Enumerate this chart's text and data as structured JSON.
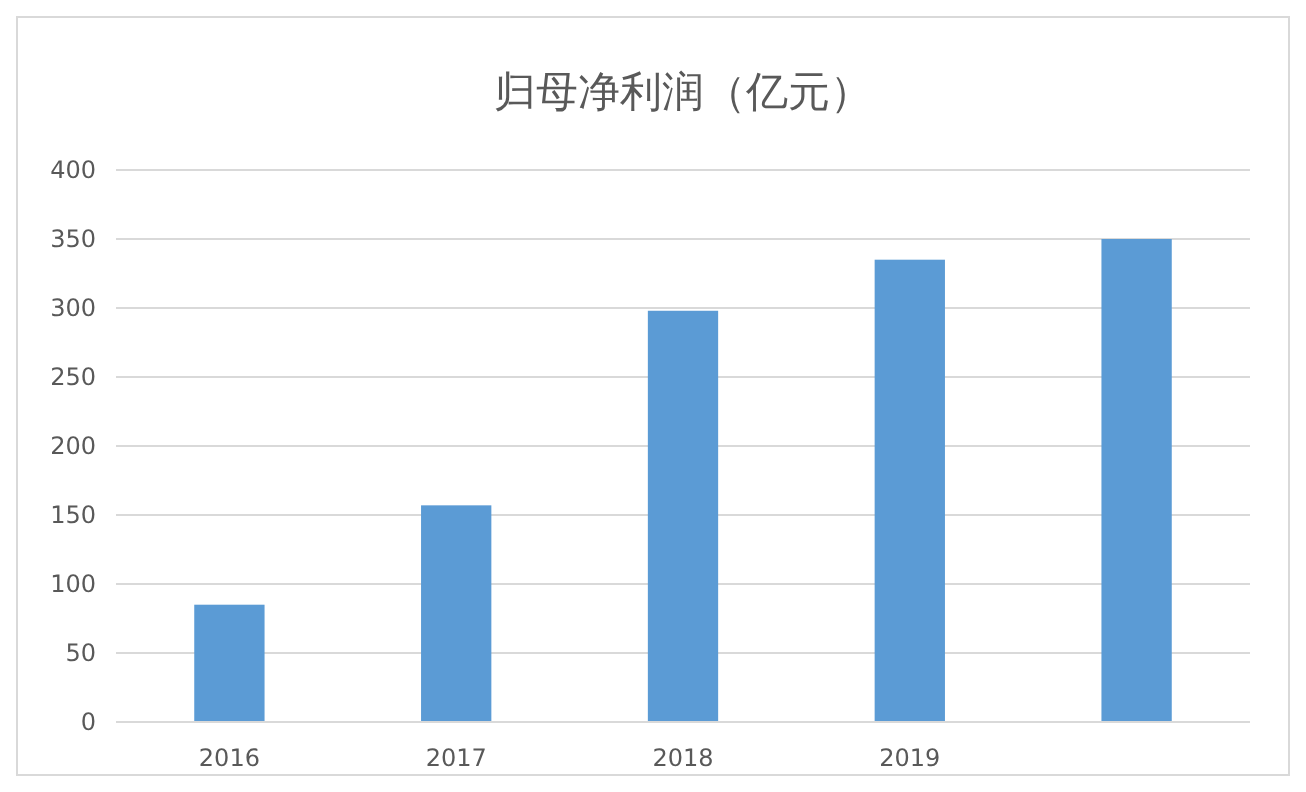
{
  "chart_data": {
    "type": "bar",
    "title": "归母净利润（亿元）",
    "categories": [
      "2016",
      "2017",
      "2018",
      "2019",
      null
    ],
    "values": [
      85,
      157,
      298,
      335,
      350
    ],
    "color": "#5b9bd5",
    "ylim": [
      0,
      400
    ],
    "yticks": [
      0,
      50,
      100,
      150,
      200,
      250,
      300,
      350,
      400
    ],
    "grid": "y"
  }
}
